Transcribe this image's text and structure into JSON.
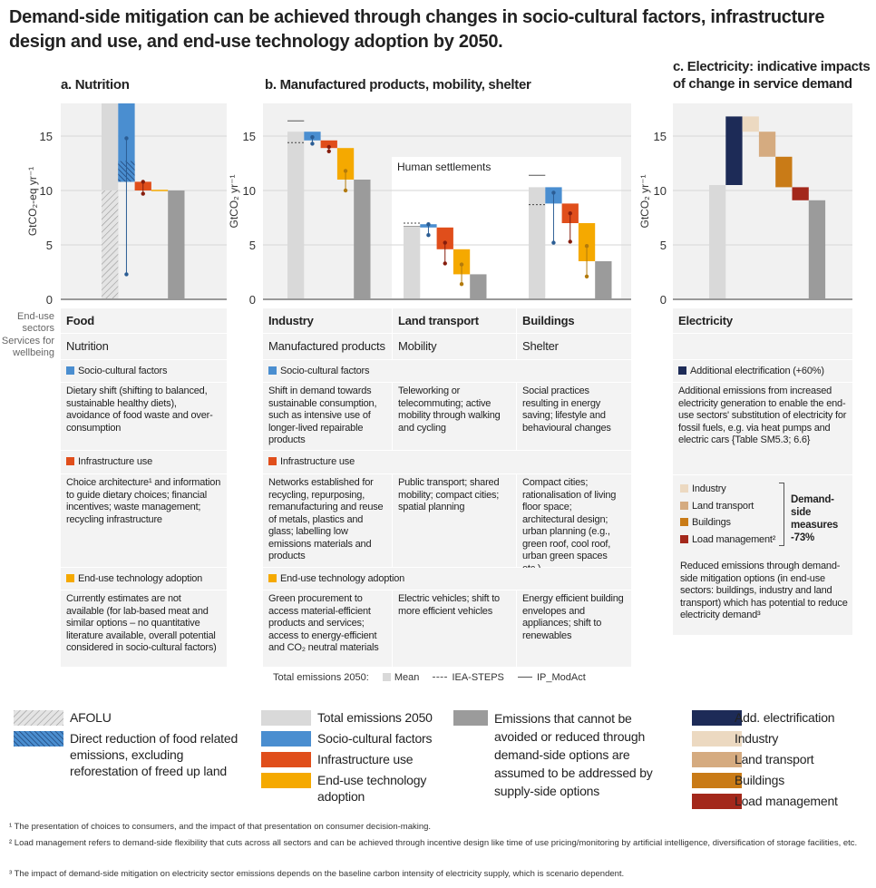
{
  "title": "Demand-side mitigation can be achieved through changes in socio-cultural factors, infrastructure design and use, and end-use technology adoption by 2050.",
  "panels": {
    "a": {
      "title": "a. Nutrition"
    },
    "b": {
      "title": "b. Manufactured products, mobility, shelter",
      "annotation": "Human settlements"
    },
    "c": {
      "title_line1": "c. Electricity: indicative impacts",
      "title_line2": "of change in service demand"
    }
  },
  "row_labels": {
    "sectors": "End-use sectors",
    "services": "Services for wellbeing"
  },
  "factors": {
    "socio": "Socio-cultural factors",
    "infra": "Infrastructure use",
    "tech": "End-use technology adoption"
  },
  "table": {
    "a": {
      "sector": "Food",
      "service": "Nutrition",
      "socio": "Dietary shift (shifting to balanced, sustainable healthy diets), avoidance of food waste and over-consumption",
      "infra": "Choice architecture¹ and information to guide dietary choices; financial incentives; waste management; recycling infrastructure",
      "tech": "Currently estimates are not available (for lab-based meat and similar options – no quantitative literature available, overall potential considered in socio-cultural factors)"
    },
    "b": [
      {
        "sector": "Industry",
        "service": "Manufactured products",
        "socio": "Shift in demand towards sustainable consumption, such as intensive use of longer-lived repairable products",
        "infra": "Networks established for recycling, repurposing, remanufacturing and reuse of metals, plastics and glass; labelling low emissions materials and products",
        "tech": "Green procurement to access material-efficient products and services; access to energy-efficient and CO₂ neutral materials"
      },
      {
        "sector": "Land transport",
        "service": "Mobility",
        "socio": "Teleworking or telecommuting; active mobility through walking and cycling",
        "infra": "Public transport; shared mobility; compact cities; spatial planning",
        "tech": "Electric vehicles; shift to more efficient vehicles"
      },
      {
        "sector": "Buildings",
        "service": "Shelter",
        "socio": "Social practices resulting in energy saving; lifestyle and behavioural changes",
        "infra": "Compact cities; rationalisation of living floor space; architectural design; urban planning (e.g., green roof, cool roof, urban green spaces etc.)",
        "tech": "Energy efficient building envelopes and appliances; shift to renewables"
      }
    ],
    "c": {
      "sector": "Electricity",
      "elec_label": "Additional electrification (+60%)",
      "elec_desc": "Additional emissions from increased electricity generation to enable the end-use sectors' substitution of electricity for fossil fuels, e.g. via heat pumps and electric cars {Table SM5.3; 6.6}",
      "items": [
        "Industry",
        "Land transport",
        "Buildings",
        "Load management²"
      ],
      "bracket": "Demand-side measures -73%",
      "reduced_desc": "Reduced emissions through demand-side mitigation options (in end-use sectors: buildings, industry and land transport) which has potential to reduce electricity demand³"
    }
  },
  "total_legend": {
    "label": "Total emissions 2050:",
    "mean": "Mean",
    "iea": "IEA-STEPS",
    "ip": "IP_ModAct"
  },
  "legend": {
    "afolu": "AFOLU",
    "direct": "Direct reduction of food related emissions, excluding reforestation of freed up land",
    "total": "Total emissions 2050",
    "socio": "Socio-cultural factors",
    "infra": "Infrastructure use",
    "tech": "End-use technology adoption",
    "residual": "Emissions that cannot be avoided or reduced through demand-side options are assumed to be addressed by supply-side options",
    "elec": "Add. electrification",
    "industry": "Industry",
    "land": "Land transport",
    "buildings": "Buildings",
    "load": "Load management"
  },
  "footnotes": [
    "¹ The presentation of choices to consumers, and the impact of that presentation on consumer decision-making.",
    "² Load management refers to demand-side flexibility that cuts across all sectors and can be achieved through incentive design like time of use pricing/monitoring by artificial intelligence, diversification of storage facilities, etc.",
    "³ The impact of demand-side mitigation on electricity sector emissions depends on the baseline carbon intensity of electricity supply, which is scenario dependent."
  ],
  "colors": {
    "total": "#d9d9d9",
    "socio": "#4a8ed0",
    "infra": "#e04e1b",
    "tech": "#f5a900",
    "residual": "#9b9b9b",
    "elec": "#1d2b57",
    "industry": "#ecd9c1",
    "land": "#d5ab80",
    "buildings": "#c97b17",
    "load": "#a3281b",
    "socio_dot": "#2b5d94",
    "infra_dot": "#861d0d",
    "tech_dot": "#b27a0c"
  },
  "chart_data": [
    {
      "type": "bar",
      "subtype": "waterfall",
      "id": "a",
      "ylabel": "GtCO₂-eq yr⁻¹",
      "ylim": [
        0,
        18
      ],
      "yticks": [
        0,
        5,
        10,
        15
      ],
      "grid": true,
      "groups": [
        {
          "name": "Food",
          "bars": [
            {
              "series": "total",
              "from": 0,
              "to": 18,
              "hatched_below": 10
            },
            {
              "series": "socio",
              "from": 10.8,
              "to": 18,
              "hatched_from": 10.8,
              "hatched_to": 12.7,
              "range": [
                14.8,
                2.3
              ]
            },
            {
              "series": "infra",
              "from": 10,
              "to": 10.8,
              "range": [
                10.8,
                9.7
              ]
            },
            {
              "series": "tech",
              "from": 10,
              "to": 10
            },
            {
              "series": "residual",
              "from": 0,
              "to": 10
            }
          ]
        }
      ]
    },
    {
      "type": "bar",
      "subtype": "waterfall",
      "id": "b",
      "ylabel": "GtCO₂ yr⁻¹",
      "ylim": [
        0,
        18
      ],
      "yticks": [
        0,
        5,
        10,
        15
      ],
      "grid": true,
      "groups": [
        {
          "name": "Industry",
          "iea": 14.4,
          "ip": 16.4,
          "bars": [
            {
              "series": "total",
              "from": 0,
              "to": 15.4
            },
            {
              "series": "socio",
              "from": 14.6,
              "to": 15.4,
              "range": [
                14.9,
                14.3
              ]
            },
            {
              "series": "infra",
              "from": 13.9,
              "to": 14.6,
              "range": [
                14.0,
                13.6
              ]
            },
            {
              "series": "tech",
              "from": 11.0,
              "to": 13.9,
              "range": [
                11.8,
                10.0
              ]
            },
            {
              "series": "residual",
              "from": 0,
              "to": 11.0
            }
          ]
        },
        {
          "name": "Land transport",
          "iea": 7.0,
          "ip": 6.7,
          "bars": [
            {
              "series": "total",
              "from": 0,
              "to": 6.7
            },
            {
              "series": "socio",
              "from": 6.6,
              "to": 6.9,
              "range": [
                6.9,
                5.9
              ]
            },
            {
              "series": "infra",
              "from": 4.6,
              "to": 6.6,
              "range": [
                5.2,
                3.3
              ]
            },
            {
              "series": "tech",
              "from": 2.3,
              "to": 4.6,
              "range": [
                3.2,
                1.4
              ]
            },
            {
              "series": "residual",
              "from": 0,
              "to": 2.3
            }
          ]
        },
        {
          "name": "Buildings",
          "iea": 8.7,
          "ip": 11.4,
          "bars": [
            {
              "series": "total",
              "from": 0,
              "to": 10.3
            },
            {
              "series": "socio",
              "from": 8.8,
              "to": 10.3,
              "range": [
                9.8,
                5.2
              ]
            },
            {
              "series": "infra",
              "from": 7.0,
              "to": 8.8,
              "range": [
                7.9,
                5.3
              ]
            },
            {
              "series": "tech",
              "from": 3.5,
              "to": 7.0,
              "range": [
                4.9,
                2.1
              ]
            },
            {
              "series": "residual",
              "from": 0,
              "to": 3.5
            }
          ]
        }
      ]
    },
    {
      "type": "bar",
      "subtype": "waterfall",
      "id": "c",
      "ylabel": "GtCO₂ yr⁻¹",
      "ylim": [
        0,
        18
      ],
      "yticks": [
        0,
        5,
        10,
        15
      ],
      "grid": true,
      "groups": [
        {
          "name": "Electricity",
          "bars": [
            {
              "series": "total",
              "from": 0,
              "to": 10.5
            },
            {
              "series": "elec",
              "from": 10.5,
              "to": 16.8
            },
            {
              "series": "industry",
              "from": 15.4,
              "to": 16.8
            },
            {
              "series": "land",
              "from": 13.1,
              "to": 15.4
            },
            {
              "series": "buildings",
              "from": 10.3,
              "to": 13.1
            },
            {
              "series": "load",
              "from": 9.1,
              "to": 10.3
            },
            {
              "series": "residual",
              "from": 0,
              "to": 9.1
            }
          ]
        }
      ]
    }
  ]
}
